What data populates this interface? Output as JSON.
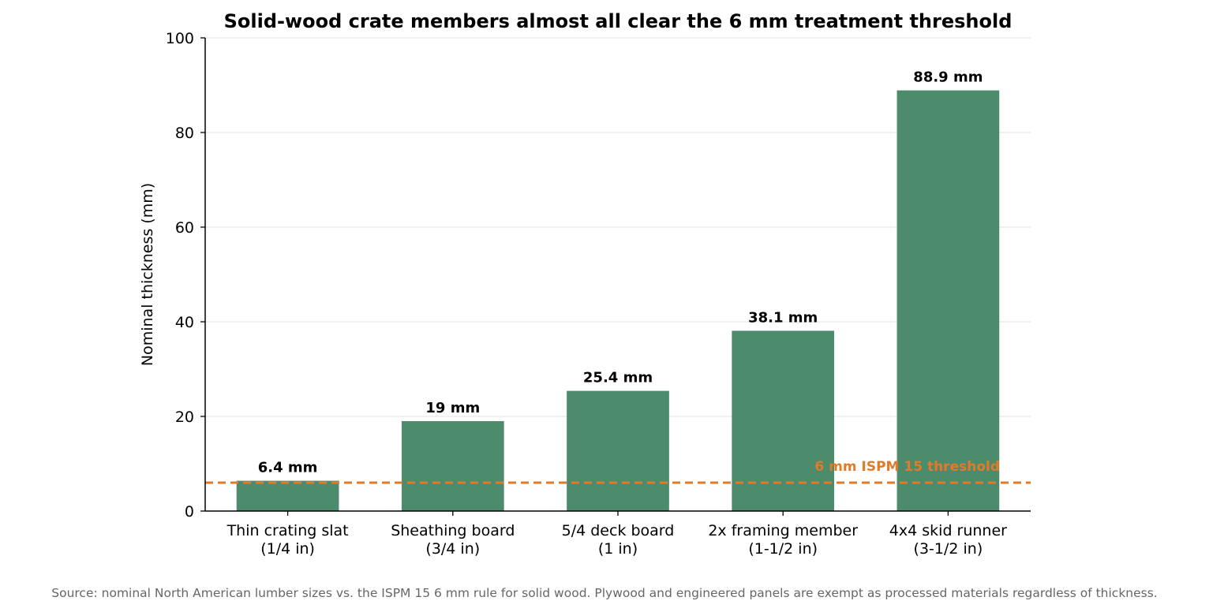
{
  "chart_data": {
    "type": "bar",
    "title": "Solid-wood crate members almost all clear the 6 mm treatment threshold",
    "xlabel": "",
    "ylabel": "Nominal thickness (mm)",
    "ylim": [
      0,
      100
    ],
    "yticks": [
      0,
      20,
      40,
      60,
      80,
      100
    ],
    "categories": [
      [
        "Thin crating slat",
        "(1/4 in)"
      ],
      [
        "Sheathing board",
        "(3/4 in)"
      ],
      [
        "5/4 deck board",
        "(1 in)"
      ],
      [
        "2x framing member",
        "(1-1/2 in)"
      ],
      [
        "4x4 skid runner",
        "(3-1/2 in)"
      ]
    ],
    "values": [
      6.4,
      19,
      25.4,
      38.1,
      88.9
    ],
    "data_labels": [
      "6.4 mm",
      "19 mm",
      "25.4 mm",
      "38.1 mm",
      "88.9 mm"
    ],
    "reference_line": {
      "value": 6,
      "label": "6 mm ISPM 15 threshold",
      "color": "#e07b2a",
      "style": "dashed"
    },
    "bar_color": "#4d8b6d",
    "grid": "horizontal",
    "legend": "none"
  },
  "footer": {
    "source": "Source: nominal North American lumber sizes vs. the ISPM 15 6 mm rule for solid wood. Plywood and engineered panels are exempt as processed materials regardless of thickness."
  }
}
